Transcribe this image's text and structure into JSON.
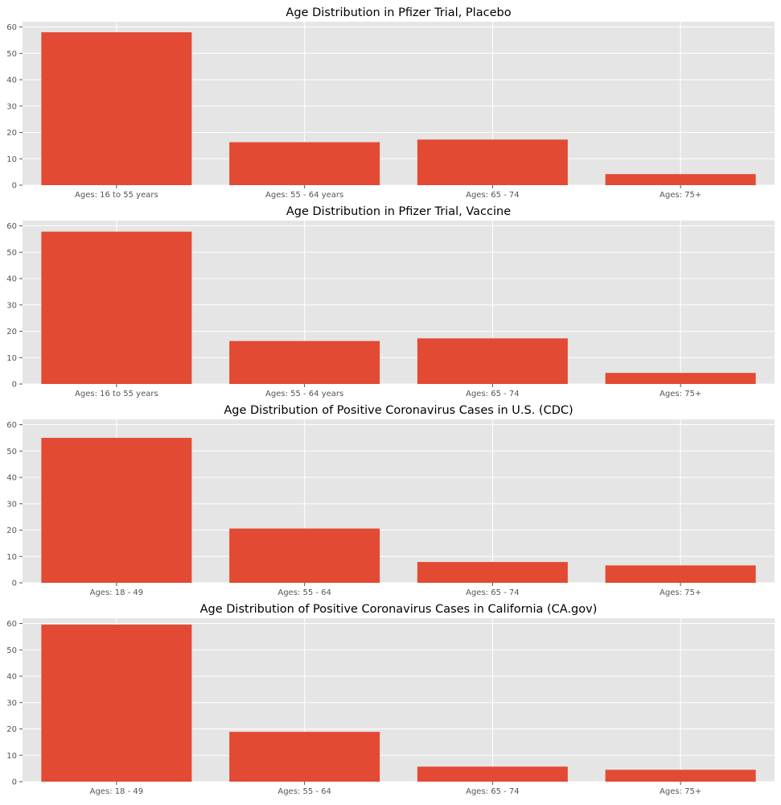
{
  "chart_data": [
    {
      "type": "bar",
      "title": "Age Distribution in Pfizer Trial, Placebo",
      "categories": [
        "Ages: 16 to 55 years",
        "Ages: 55 - 64 years",
        "Ages: 65 - 74",
        "Ages: 75+"
      ],
      "values": [
        58.0,
        16.3,
        17.3,
        4.2
      ],
      "xlabel": "",
      "ylabel": "",
      "ylim": [
        0,
        62
      ],
      "yticks": [
        0,
        10,
        20,
        30,
        40,
        50,
        60
      ],
      "grid": true,
      "bar_color": "#E24A33"
    },
    {
      "type": "bar",
      "title": "Age Distribution in Pfizer Trial, Vaccine",
      "categories": [
        "Ages: 16 to 55 years",
        "Ages: 55 - 64 years",
        "Ages: 65 - 74",
        "Ages: 75+"
      ],
      "values": [
        57.8,
        16.3,
        17.3,
        4.2
      ],
      "xlabel": "",
      "ylabel": "",
      "ylim": [
        0,
        62
      ],
      "yticks": [
        0,
        10,
        20,
        30,
        40,
        50,
        60
      ],
      "grid": true,
      "bar_color": "#E24A33"
    },
    {
      "type": "bar",
      "title": "Age Distribution of Positive Coronavirus Cases in U.S. (CDC)",
      "categories": [
        "Ages: 18 - 49",
        "Ages: 55 - 64",
        "Ages: 65 - 74",
        "Ages: 75+"
      ],
      "values": [
        55.0,
        20.6,
        7.9,
        6.6
      ],
      "xlabel": "",
      "ylabel": "",
      "ylim": [
        0,
        62
      ],
      "yticks": [
        0,
        10,
        20,
        30,
        40,
        50,
        60
      ],
      "grid": true,
      "bar_color": "#E24A33"
    },
    {
      "type": "bar",
      "title": "Age Distribution of Positive Coronavirus Cases in California (CA.gov)",
      "categories": [
        "Ages: 18 - 49",
        "Ages: 55 - 64",
        "Ages: 65 - 74",
        "Ages: 75+"
      ],
      "values": [
        59.6,
        18.9,
        5.7,
        4.5
      ],
      "xlabel": "",
      "ylabel": "",
      "ylim": [
        0,
        62
      ],
      "yticks": [
        0,
        10,
        20,
        30,
        40,
        50,
        60
      ],
      "grid": true,
      "bar_color": "#E24A33"
    }
  ],
  "style": {
    "axes_background": "#E5E5E5",
    "grid_color": "#FFFFFF",
    "text_color": "#000000",
    "tick_color": "#555555"
  }
}
